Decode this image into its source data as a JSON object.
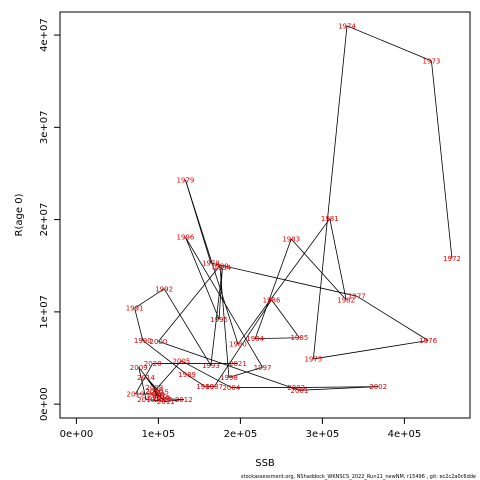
{
  "chart_data": {
    "type": "line",
    "title": "",
    "xlabel": "SSB",
    "ylabel": "R(age 0)",
    "xlim": [
      -20000,
      480000
    ],
    "ylim": [
      -1500000,
      42500000
    ],
    "xticks": [
      0,
      100000,
      200000,
      300000,
      400000
    ],
    "xtick_labels": [
      "0e+00",
      "1e+05",
      "2e+05",
      "3e+05",
      "4e+05"
    ],
    "yticks": [
      0,
      10000000,
      20000000,
      30000000,
      40000000
    ],
    "ytick_labels": [
      "0e+00",
      "1e+07",
      "2e+07",
      "3e+07",
      "4e+07"
    ],
    "grid": false,
    "legend": "none",
    "line_color": "#000000",
    "label_color": "#e00000",
    "points": [
      {
        "label": "1972",
        "x": 458000,
        "y": 15800000
      },
      {
        "label": "1973",
        "x": 433000,
        "y": 37200000
      },
      {
        "label": "1974",
        "x": 330000,
        "y": 41000000
      },
      {
        "label": "1975",
        "x": 289000,
        "y": 4900000
      },
      {
        "label": "1976",
        "x": 429000,
        "y": 6900000
      },
      {
        "label": "1977",
        "x": 342000,
        "y": 11700000
      },
      {
        "label": "1978",
        "x": 164000,
        "y": 15300000
      },
      {
        "label": "1979",
        "x": 133000,
        "y": 24300000
      },
      {
        "label": "1980",
        "x": 197000,
        "y": 6500000
      },
      {
        "label": "1981",
        "x": 309000,
        "y": 20100000
      },
      {
        "label": "1982",
        "x": 329000,
        "y": 11300000
      },
      {
        "label": "1983",
        "x": 262000,
        "y": 17900000
      },
      {
        "label": "1984",
        "x": 218000,
        "y": 7100000
      },
      {
        "label": "1985",
        "x": 272000,
        "y": 7200000
      },
      {
        "label": "1986",
        "x": 238000,
        "y": 11300000
      },
      {
        "label": "1987",
        "x": 168000,
        "y": 1900000
      },
      {
        "label": "1988",
        "x": 157000,
        "y": 1900000
      },
      {
        "label": "1989",
        "x": 135000,
        "y": 3200000
      },
      {
        "label": "1990",
        "x": 81000,
        "y": 6900000
      },
      {
        "label": "1991",
        "x": 71000,
        "y": 10400000
      },
      {
        "label": "1992",
        "x": 107000,
        "y": 12500000
      },
      {
        "label": "1993",
        "x": 164000,
        "y": 4200000
      },
      {
        "label": "1994",
        "x": 178000,
        "y": 14800000
      },
      {
        "label": "1995",
        "x": 174000,
        "y": 9200000
      },
      {
        "label": "1996",
        "x": 133000,
        "y": 18100000
      },
      {
        "label": "1997",
        "x": 227000,
        "y": 4000000
      },
      {
        "label": "1998",
        "x": 186000,
        "y": 2900000
      },
      {
        "label": "1999",
        "x": 175000,
        "y": 15000000
      },
      {
        "label": "2000",
        "x": 100000,
        "y": 6800000
      },
      {
        "label": "2001",
        "x": 272000,
        "y": 1500000
      },
      {
        "label": "2002",
        "x": 368000,
        "y": 1900000
      },
      {
        "label": "2003",
        "x": 268000,
        "y": 1800000
      },
      {
        "label": "2004",
        "x": 189000,
        "y": 1800000
      },
      {
        "label": "2005",
        "x": 128000,
        "y": 4700000
      },
      {
        "label": "2006",
        "x": 95000,
        "y": 1400000
      },
      {
        "label": "2007",
        "x": 98000,
        "y": 900000
      },
      {
        "label": "2008",
        "x": 95000,
        "y": 1800000
      },
      {
        "label": "2009",
        "x": 76000,
        "y": 4000000
      },
      {
        "label": "2010",
        "x": 85000,
        "y": 500000
      },
      {
        "label": "2011",
        "x": 109000,
        "y": 300000
      },
      {
        "label": "2012",
        "x": 131000,
        "y": 500000
      },
      {
        "label": "2013",
        "x": 104000,
        "y": 600000
      },
      {
        "label": "2014",
        "x": 85000,
        "y": 2900000
      },
      {
        "label": "2015",
        "x": 102000,
        "y": 1300000
      },
      {
        "label": "2016",
        "x": 103000,
        "y": 700000
      },
      {
        "label": "2017",
        "x": 106000,
        "y": 500000
      },
      {
        "label": "2018",
        "x": 97000,
        "y": 1100000
      },
      {
        "label": "2019",
        "x": 72000,
        "y": 1100000
      },
      {
        "label": "2020",
        "x": 93000,
        "y": 4400000
      },
      {
        "label": "2021",
        "x": 197000,
        "y": 4400000
      }
    ]
  },
  "footer_text": "stockassessment.org,  NShaddock_WKNSCS_2022_Run11_newNM,  r15496 ,  git: ec2c2a0c6dde"
}
